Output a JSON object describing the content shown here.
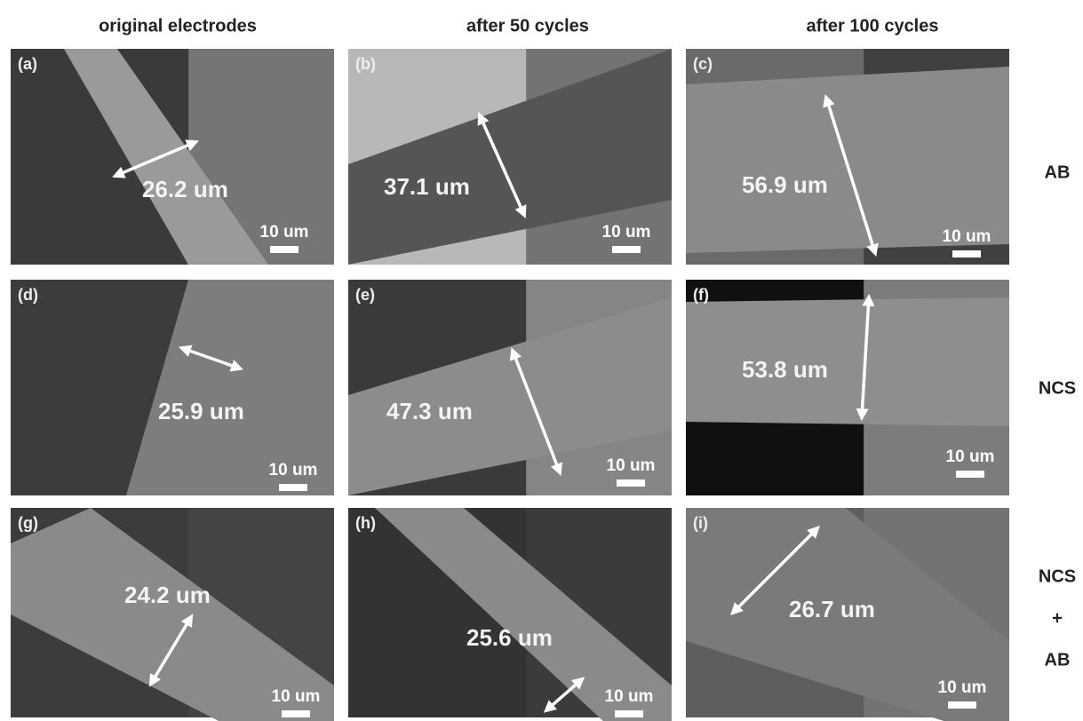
{
  "columns": [
    "original electrodes",
    "after 50 cycles",
    "after 100 cycles"
  ],
  "rows": [
    {
      "lines": [
        "AB"
      ]
    },
    {
      "lines": [
        "NCS"
      ]
    },
    {
      "lines": [
        "NCS",
        "+",
        "AB"
      ]
    }
  ],
  "panels": [
    {
      "label": "(a)",
      "thickness": "26.2 um",
      "scale": "10 um"
    },
    {
      "label": "(b)",
      "thickness": "37.1 um",
      "scale": "10 um"
    },
    {
      "label": "(c)",
      "thickness": "56.9 um",
      "scale": "10 um"
    },
    {
      "label": "(d)",
      "thickness": "25.9 um",
      "scale": "10 um"
    },
    {
      "label": "(e)",
      "thickness": "47.3 um",
      "scale": "10 um"
    },
    {
      "label": "(f)",
      "thickness": "53.8 um",
      "scale": "10 um"
    },
    {
      "label": "(g)",
      "thickness": "24.2 um",
      "scale": "10 um"
    },
    {
      "label": "(h)",
      "thickness": "25.6 um",
      "scale": "10 um"
    },
    {
      "label": "(i)",
      "thickness": "26.7 um",
      "scale": "10 um"
    }
  ]
}
